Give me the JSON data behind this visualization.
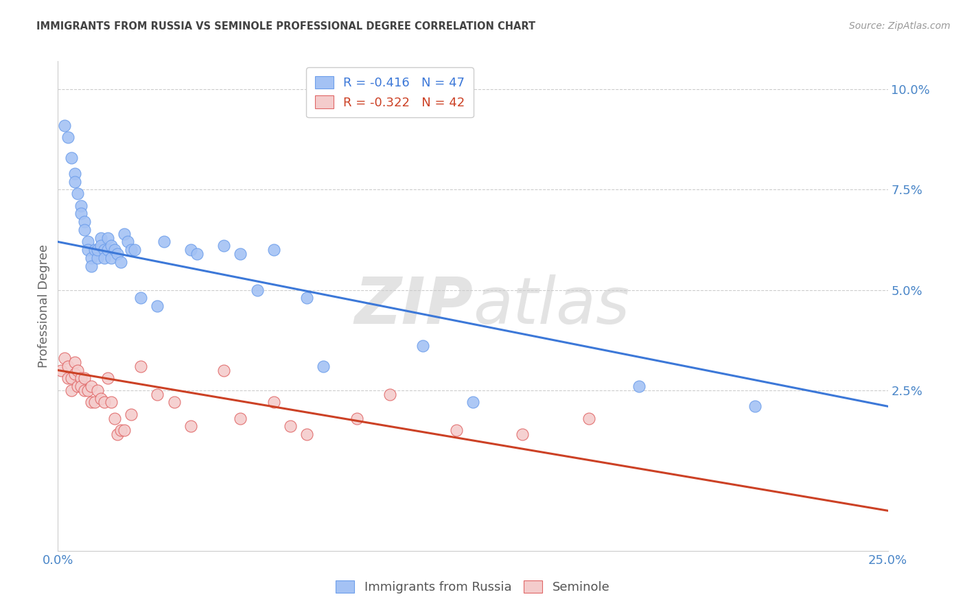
{
  "title": "IMMIGRANTS FROM RUSSIA VS SEMINOLE PROFESSIONAL DEGREE CORRELATION CHART",
  "source": "Source: ZipAtlas.com",
  "ylabel": "Professional Degree",
  "right_yticks": [
    "10.0%",
    "7.5%",
    "5.0%",
    "2.5%"
  ],
  "right_ytick_vals": [
    0.1,
    0.075,
    0.05,
    0.025
  ],
  "xmin": 0.0,
  "xmax": 0.25,
  "ymin": -0.015,
  "ymax": 0.107,
  "blue_color": "#a4c2f4",
  "pink_color": "#f4cccc",
  "blue_edge_color": "#6d9eeb",
  "pink_edge_color": "#e06666",
  "blue_line_color": "#3c78d8",
  "pink_line_color": "#cc4125",
  "legend_blue_label": "Immigrants from Russia",
  "legend_pink_label": "Seminole",
  "legend_blue_r": "R = -0.416",
  "legend_blue_n": "N = 47",
  "legend_pink_r": "R = -0.322",
  "legend_pink_n": "N = 42",
  "watermark_zip": "ZIP",
  "watermark_atlas": "atlas",
  "blue_scatter_x": [
    0.002,
    0.003,
    0.004,
    0.005,
    0.005,
    0.006,
    0.007,
    0.007,
    0.008,
    0.008,
    0.009,
    0.009,
    0.01,
    0.01,
    0.011,
    0.012,
    0.012,
    0.013,
    0.013,
    0.014,
    0.014,
    0.015,
    0.015,
    0.016,
    0.016,
    0.017,
    0.018,
    0.019,
    0.02,
    0.021,
    0.022,
    0.023,
    0.025,
    0.03,
    0.032,
    0.04,
    0.042,
    0.05,
    0.055,
    0.06,
    0.065,
    0.075,
    0.08,
    0.11,
    0.125,
    0.175,
    0.21
  ],
  "blue_scatter_y": [
    0.091,
    0.088,
    0.083,
    0.079,
    0.077,
    0.074,
    0.071,
    0.069,
    0.067,
    0.065,
    0.062,
    0.06,
    0.058,
    0.056,
    0.06,
    0.058,
    0.06,
    0.063,
    0.061,
    0.06,
    0.058,
    0.063,
    0.06,
    0.058,
    0.061,
    0.06,
    0.059,
    0.057,
    0.064,
    0.062,
    0.06,
    0.06,
    0.048,
    0.046,
    0.062,
    0.06,
    0.059,
    0.061,
    0.059,
    0.05,
    0.06,
    0.048,
    0.031,
    0.036,
    0.022,
    0.026,
    0.021
  ],
  "pink_scatter_x": [
    0.001,
    0.002,
    0.003,
    0.003,
    0.004,
    0.004,
    0.005,
    0.005,
    0.006,
    0.006,
    0.007,
    0.007,
    0.008,
    0.008,
    0.009,
    0.01,
    0.01,
    0.011,
    0.012,
    0.013,
    0.014,
    0.015,
    0.016,
    0.017,
    0.018,
    0.019,
    0.02,
    0.022,
    0.025,
    0.03,
    0.035,
    0.04,
    0.05,
    0.055,
    0.065,
    0.07,
    0.075,
    0.09,
    0.1,
    0.12,
    0.14,
    0.16
  ],
  "pink_scatter_y": [
    0.03,
    0.033,
    0.031,
    0.028,
    0.028,
    0.025,
    0.032,
    0.029,
    0.03,
    0.026,
    0.028,
    0.026,
    0.028,
    0.025,
    0.025,
    0.026,
    0.022,
    0.022,
    0.025,
    0.023,
    0.022,
    0.028,
    0.022,
    0.018,
    0.014,
    0.015,
    0.015,
    0.019,
    0.031,
    0.024,
    0.022,
    0.016,
    0.03,
    0.018,
    0.022,
    0.016,
    0.014,
    0.018,
    0.024,
    0.015,
    0.014,
    0.018
  ],
  "blue_line_x0": 0.0,
  "blue_line_x1": 0.25,
  "blue_line_y0": 0.062,
  "blue_line_y1": 0.021,
  "pink_line_x0": 0.0,
  "pink_line_x1": 0.25,
  "pink_line_y0": 0.03,
  "pink_line_y1": -0.005,
  "grid_color": "#cccccc",
  "background_color": "#ffffff",
  "title_color": "#434343",
  "ylabel_color": "#666666",
  "tick_label_color": "#4a86c8",
  "source_color": "#999999"
}
